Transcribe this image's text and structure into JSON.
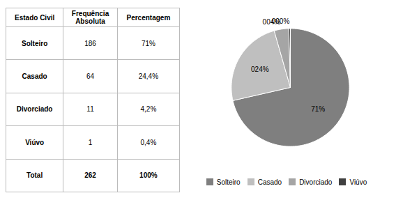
{
  "chart_data": [
    {
      "type": "table",
      "columns": [
        "Estado Civil",
        "Frequência\nAbsoluta",
        "Percentagem"
      ],
      "rows": [
        [
          "Solteiro",
          "186",
          "71%"
        ],
        [
          "Casado",
          "64",
          "24,4%"
        ],
        [
          "Divorciado",
          "11",
          "4,2%"
        ],
        [
          "Viúvo",
          "1",
          "0,4%"
        ],
        [
          "Total",
          "262",
          "100%"
        ]
      ]
    },
    {
      "type": "pie",
      "categories": [
        "Solteiro",
        "Casado",
        "Divorciado",
        "Viúvo"
      ],
      "values": [
        71,
        24,
        4,
        0.4
      ],
      "value_labels": [
        "71%",
        "024%",
        "004%",
        "000%"
      ],
      "colors": [
        "#7f7f7f",
        "#bfbfbf",
        "#a5a5a5",
        "#404040"
      ],
      "data_labels": true,
      "legend": "bottom"
    }
  ]
}
